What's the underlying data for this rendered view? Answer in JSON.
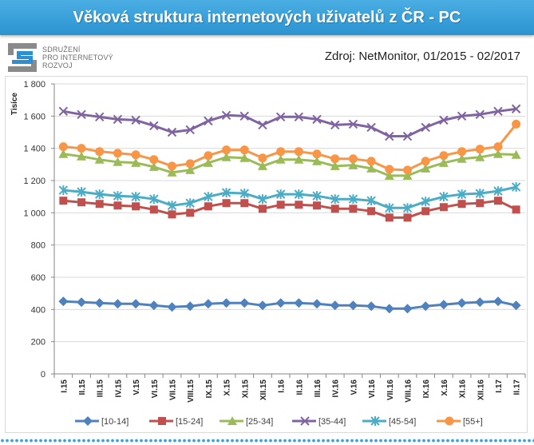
{
  "source": "Zdroj: NetMonitor, 01/2015 - 02/2017",
  "logo": {
    "line1": "SDRUŽENÍ",
    "line2": "PRO INTERNETOVÝ",
    "line3": "ROZVOJ",
    "icon": "spir-logo-icon"
  },
  "colors": {
    "banner": "#3a9fd9",
    "logo_gray": "#8a8a8a",
    "logo_blue": "#2b8fd1",
    "grid": "#d9d9d9",
    "axis": "#868686"
  },
  "chart_data": {
    "type": "line",
    "title": "Věková struktura internetových uživatelů z ČR - PC",
    "xlabel": "",
    "ylabel": "Tisíce",
    "ylim": [
      0,
      1800
    ],
    "yticks": [
      0,
      200,
      400,
      600,
      800,
      1000,
      1200,
      1400,
      1600,
      1800
    ],
    "ytick_labels": [
      "0",
      "200",
      "400",
      "600",
      "800",
      "1 000",
      "1 200",
      "1 400",
      "1 600",
      "1 800"
    ],
    "grid": true,
    "legend": "bottom",
    "categories": [
      "I.15",
      "II.15",
      "III.15",
      "IV.15",
      "V.15",
      "VI.15",
      "VII.15",
      "VIII.15",
      "IX.15",
      "X.15",
      "XI.15",
      "XII.15",
      "I.16",
      "II.16",
      "III.16",
      "IV.16",
      "V.16",
      "VI.16",
      "VII.16",
      "VIII.16",
      "IX.16",
      "X.16",
      "XI.16",
      "XII.16",
      "I.17",
      "II.17"
    ],
    "series": [
      {
        "name": "[10-14]",
        "color": "#4F81BD",
        "marker": "diamond",
        "values": [
          450,
          445,
          440,
          435,
          435,
          425,
          415,
          420,
          435,
          440,
          440,
          425,
          440,
          440,
          435,
          425,
          425,
          420,
          405,
          405,
          420,
          430,
          440,
          445,
          450,
          425
        ]
      },
      {
        "name": "[15-24]",
        "color": "#C0504D",
        "marker": "square",
        "values": [
          1075,
          1065,
          1055,
          1045,
          1040,
          1020,
          990,
          1000,
          1040,
          1060,
          1060,
          1025,
          1050,
          1050,
          1045,
          1025,
          1025,
          1010,
          970,
          970,
          1010,
          1035,
          1055,
          1060,
          1075,
          1020
        ]
      },
      {
        "name": "[25-34]",
        "color": "#9BBB59",
        "marker": "triangle",
        "values": [
          1365,
          1350,
          1330,
          1315,
          1310,
          1285,
          1250,
          1265,
          1310,
          1345,
          1340,
          1290,
          1330,
          1330,
          1320,
          1290,
          1295,
          1275,
          1230,
          1230,
          1275,
          1310,
          1335,
          1345,
          1365,
          1360
        ]
      },
      {
        "name": "[35-44]",
        "color": "#8064A2",
        "marker": "x",
        "values": [
          1630,
          1610,
          1595,
          1580,
          1575,
          1540,
          1500,
          1515,
          1570,
          1605,
          1600,
          1545,
          1595,
          1595,
          1580,
          1545,
          1550,
          1530,
          1475,
          1475,
          1530,
          1575,
          1600,
          1610,
          1630,
          1645
        ]
      },
      {
        "name": "[45-54]",
        "color": "#4BACC6",
        "marker": "asterisk",
        "values": [
          1140,
          1130,
          1115,
          1105,
          1100,
          1085,
          1045,
          1060,
          1100,
          1125,
          1120,
          1085,
          1115,
          1115,
          1105,
          1085,
          1085,
          1075,
          1030,
          1030,
          1070,
          1100,
          1115,
          1120,
          1135,
          1160
        ]
      },
      {
        "name": "[55+]",
        "color": "#F79646",
        "marker": "circle",
        "values": [
          1410,
          1400,
          1380,
          1370,
          1360,
          1330,
          1290,
          1305,
          1355,
          1390,
          1390,
          1340,
          1380,
          1380,
          1365,
          1335,
          1335,
          1320,
          1270,
          1265,
          1320,
          1355,
          1380,
          1395,
          1410,
          1550
        ]
      }
    ]
  }
}
